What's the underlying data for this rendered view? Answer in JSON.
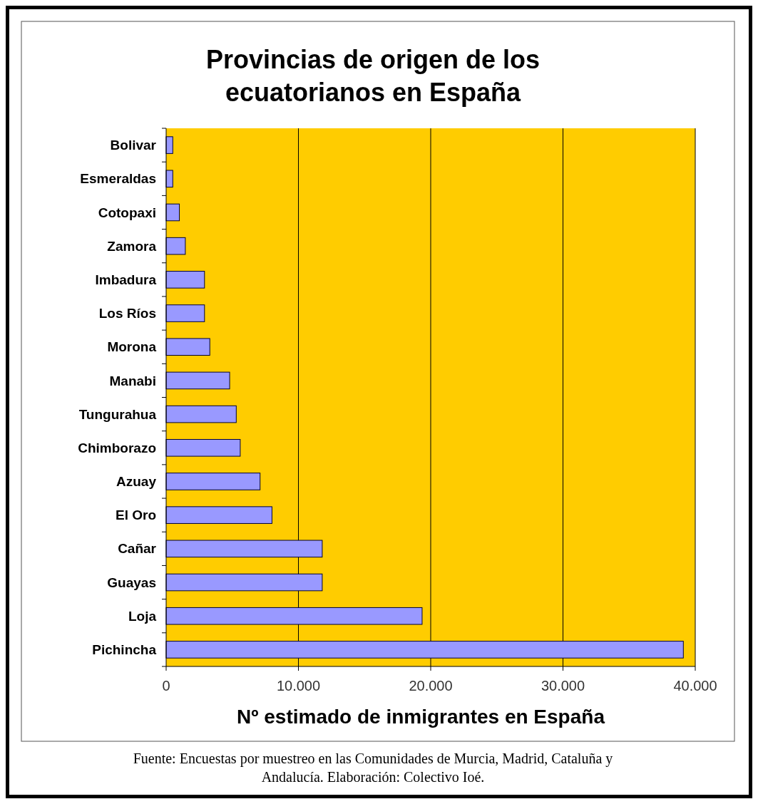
{
  "chart_data": {
    "type": "bar",
    "orientation": "horizontal",
    "title": "Provincias de origen de los ecuatorianos en España",
    "xlabel": "Nº estimado de inmigrantes en España",
    "categories": [
      "Bolivar",
      "Esmeraldas",
      "Cotopaxi",
      "Zamora",
      "Imbadura",
      "Los Ríos",
      "Morona",
      "Manabi",
      "Tungurahua",
      "Chimborazo",
      "Azuay",
      "El Oro",
      "Cañar",
      "Guayas",
      "Loja",
      "Pichincha"
    ],
    "values": [
      500,
      500,
      1000,
      1450,
      2900,
      2900,
      3300,
      4800,
      5300,
      5600,
      7100,
      8000,
      11800,
      11800,
      19350,
      39100
    ],
    "color": "#9999ff",
    "xlim": [
      0,
      40000
    ],
    "xticks": [
      0,
      {
        "value": 10000,
        "label": "10.000"
      },
      {
        "value": 20000,
        "label": "20.000"
      },
      {
        "value": 30000,
        "label": "30.000"
      },
      {
        "value": 40000,
        "label": "40.000"
      }
    ],
    "grid": "x",
    "annotations": [
      "Fuente: Encuestas por muestreo en las Comunidades de Murcia, Madrid, Cataluña y Andalucía. Elaboración: Colectivo Ioé."
    ]
  }
}
